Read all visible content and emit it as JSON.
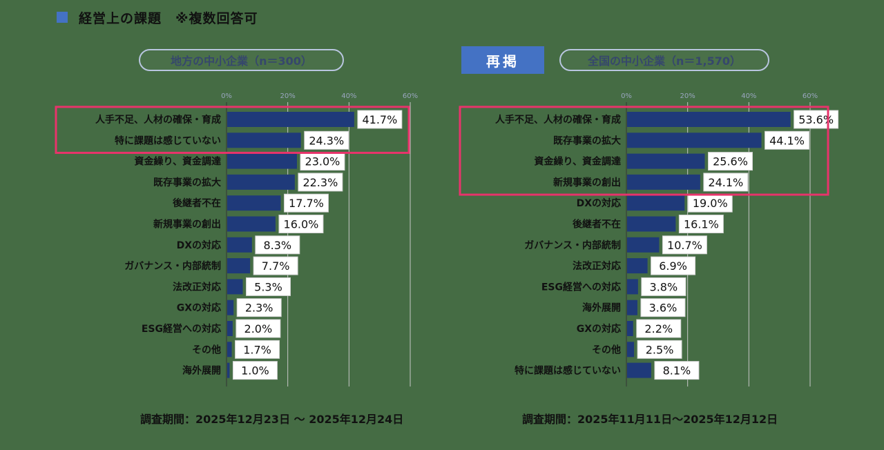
{
  "header": {
    "title": "経営上の課題　※複数回答可"
  },
  "left_panel": {
    "subtitle": "地方の中小企業（n＝300）",
    "survey_period": "調査期間：2025年12月23日 ～ 2025年12月24日"
  },
  "right_panel": {
    "repost_label": "再掲",
    "subtitle": "全国の中小企業（n＝1,570）",
    "survey_period": "調査期間：2025年11月11日～2025年12月12日"
  },
  "colors": {
    "bar": "#1f3a7a",
    "highlight_border": "#e8336b",
    "accent": "#4472c4"
  },
  "chart_data": [
    {
      "type": "bar",
      "orientation": "horizontal",
      "title": "",
      "unit": "%",
      "xlim": [
        0,
        60
      ],
      "ticks": [
        "0%",
        "20%",
        "40%",
        "60%"
      ],
      "grid": true,
      "categories": [
        "人手不足、人材の確保・育成",
        "特に課題は感じていない",
        "資金繰り、資金調達",
        "既存事業の拡大",
        "後継者不在",
        "新規事業の創出",
        "DXの対応",
        "ガバナンス・内部統制",
        "法改正対応",
        "GXの対応",
        "ESG経営への対応",
        "その他",
        "海外展開"
      ],
      "values": [
        41.7,
        24.3,
        23.0,
        22.3,
        17.7,
        16.0,
        8.3,
        7.7,
        5.3,
        2.3,
        2.0,
        1.7,
        1.0
      ],
      "labels": [
        "41.7%",
        "24.3%",
        "23.0%",
        "22.3%",
        "17.7%",
        "16.0%",
        "8.3%",
        "7.7%",
        "5.3%",
        "2.3%",
        "2.0%",
        "1.7%",
        "1.0%"
      ],
      "highlighted_rows": 2
    },
    {
      "type": "bar",
      "orientation": "horizontal",
      "title": "",
      "unit": "%",
      "xlim": [
        0,
        60
      ],
      "ticks": [
        "0%",
        "20%",
        "40%",
        "60%"
      ],
      "grid": true,
      "categories": [
        "人手不足、人材の確保・育成",
        "既存事業の拡大",
        "資金繰り、資金調達",
        "新規事業の創出",
        "DXの対応",
        "後継者不在",
        "ガバナンス・内部統制",
        "法改正対応",
        "ESG経営への対応",
        "海外展開",
        "GXの対応",
        "その他",
        "特に課題は感じていない"
      ],
      "values": [
        53.6,
        44.1,
        25.6,
        24.1,
        19.0,
        16.1,
        10.7,
        6.9,
        3.8,
        3.6,
        2.2,
        2.5,
        8.1
      ],
      "labels": [
        "53.6%",
        "44.1%",
        "25.6%",
        "24.1%",
        "19.0%",
        "16.1%",
        "10.7%",
        "6.9%",
        "3.8%",
        "3.6%",
        "2.2%",
        "2.5%",
        "8.1%"
      ],
      "highlighted_rows": 4
    }
  ]
}
